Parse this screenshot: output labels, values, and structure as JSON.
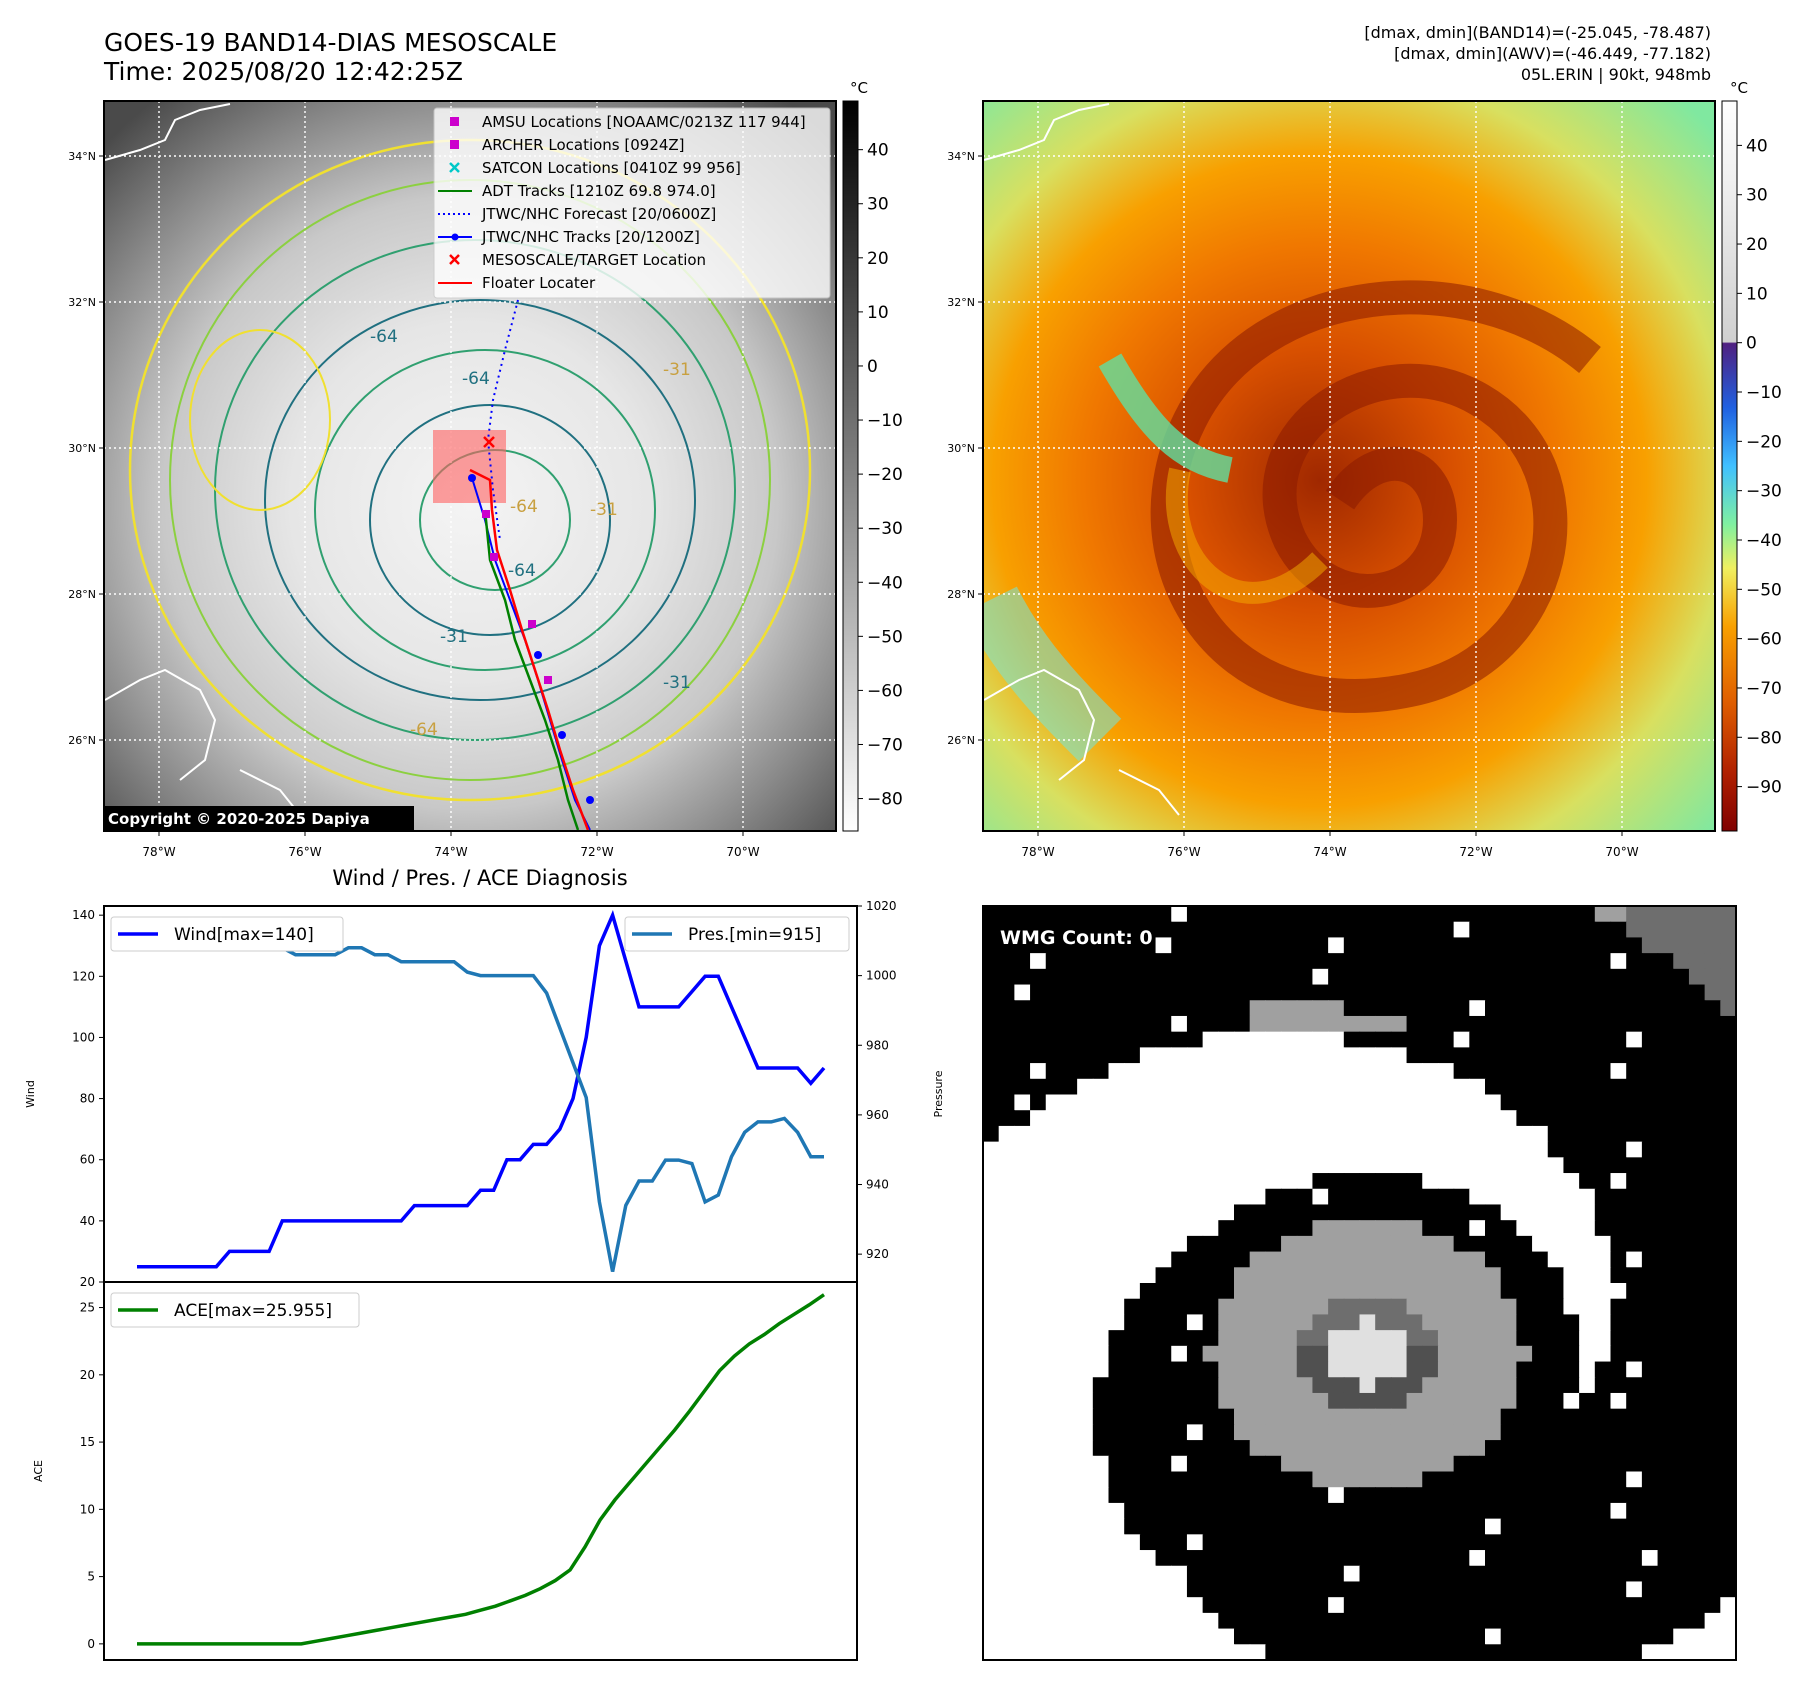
{
  "header": {
    "title_line1": "GOES-19 BAND14-DIAS MESOSCALE",
    "title_line2": "Time: 2025/08/20 12:42:25Z",
    "info_line1": "[dmax, dmin](BAND14)=(-25.045, -78.487)",
    "info_line2": "[dmax, dmin](AWV)=(-46.449, -77.182)",
    "info_line3": "05L.ERIN | 90kt, 948mb"
  },
  "map_panels": {
    "lat_ticks": [
      "34°N",
      "32°N",
      "30°N",
      "28°N",
      "26°N"
    ],
    "lon_ticks": [
      "78°W",
      "76°W",
      "74°W",
      "72°W",
      "70°W"
    ],
    "colorbar_unit": "°C",
    "gray_colorbar_ticks": [
      "40",
      "30",
      "20",
      "10",
      "0",
      "−10",
      "−20",
      "−30",
      "−40",
      "−50",
      "−60",
      "−70",
      "−80"
    ],
    "color_colorbar_ticks": [
      "40",
      "30",
      "20",
      "10",
      "0",
      "−10",
      "−20",
      "−30",
      "−40",
      "−50",
      "−60",
      "−70",
      "−80",
      "−90"
    ],
    "copyright": "Copyright © 2020-2025 Dapiya",
    "contour_labels": [
      "-64",
      "-31",
      "-64",
      "-64",
      "-64",
      "-31",
      "-31",
      "-64",
      "-31"
    ],
    "legend": [
      {
        "label": "AMSU Locations [NOAAMC/0213Z 117 944]",
        "color": "#cc00cc",
        "marker": "square"
      },
      {
        "label": "ARCHER Locations [0924Z]",
        "color": "#cc00cc",
        "marker": "square"
      },
      {
        "label": "SATCON Locations [0410Z 99 956]",
        "color": "#00c8c8",
        "marker": "x"
      },
      {
        "label": "ADT Tracks [1210Z 69.8 974.0]",
        "color": "#008000",
        "marker": "line"
      },
      {
        "label": "JTWC/NHC Forecast [20/0600Z]",
        "color": "#0000ff",
        "marker": "dotted"
      },
      {
        "label": "JTWC/NHC Tracks [20/1200Z]",
        "color": "#0000ff",
        "marker": "line-dot"
      },
      {
        "label": "MESOSCALE/TARGET Location",
        "color": "#ff0000",
        "marker": "x"
      },
      {
        "label": "Floater Locater",
        "color": "#ff0000",
        "marker": "line"
      }
    ]
  },
  "wmg": {
    "label": "WMG Count: 0"
  },
  "chart_data": [
    {
      "type": "line",
      "title": "Wind / Pres. / ACE Diagnosis",
      "ylabel": "Wind",
      "y2label": "Pressure",
      "ylim": [
        20,
        143
      ],
      "y2lim": [
        912,
        1020
      ],
      "yticks": [
        20,
        40,
        60,
        80,
        100,
        120,
        140
      ],
      "y2ticks": [
        920,
        940,
        960,
        980,
        1000,
        1020
      ],
      "series": [
        {
          "name": "Wind[max=140]",
          "color": "#0000ff",
          "axis": "left",
          "values": [
            25,
            25,
            25,
            25,
            25,
            25,
            25,
            30,
            30,
            30,
            30,
            40,
            40,
            40,
            40,
            40,
            40,
            40,
            40,
            40,
            40,
            45,
            45,
            45,
            45,
            45,
            50,
            50,
            60,
            60,
            65,
            65,
            70,
            80,
            100,
            130,
            140,
            125,
            110,
            110,
            110,
            110,
            115,
            120,
            120,
            110,
            100,
            90,
            90,
            90,
            90,
            85,
            90
          ]
        },
        {
          "name": "Pres.[min=915]",
          "color": "#1f77b4",
          "axis": "right",
          "values": [
            1015,
            1015,
            1010,
            1009,
            1008,
            1008,
            1008,
            1008,
            1008,
            1008,
            1008,
            1008,
            1006,
            1006,
            1006,
            1006,
            1008,
            1008,
            1006,
            1006,
            1004,
            1004,
            1004,
            1004,
            1004,
            1001,
            1000,
            1000,
            1000,
            1000,
            1000,
            995,
            985,
            975,
            965,
            935,
            915,
            934,
            941,
            941,
            947,
            947,
            946,
            935,
            937,
            948,
            955,
            958,
            958,
            959,
            955,
            948,
            948
          ]
        }
      ]
    },
    {
      "type": "line",
      "ylabel": "ACE",
      "ylim": [
        -1.2,
        26.9
      ],
      "yticks": [
        0,
        5,
        10,
        15,
        20,
        25
      ],
      "series": [
        {
          "name": "ACE[max=25.955]",
          "color": "#008000",
          "values": [
            0,
            0,
            0,
            0,
            0,
            0,
            0,
            0,
            0,
            0,
            0,
            0,
            0.2,
            0.4,
            0.6,
            0.8,
            1.0,
            1.2,
            1.4,
            1.6,
            1.8,
            2.0,
            2.2,
            2.5,
            2.8,
            3.2,
            3.6,
            4.1,
            4.7,
            5.5,
            7.2,
            9.2,
            10.7,
            12.0,
            13.3,
            14.6,
            15.9,
            17.3,
            18.8,
            20.3,
            21.4,
            22.3,
            23.0,
            23.8,
            24.5,
            25.2,
            25.955
          ]
        }
      ]
    }
  ]
}
